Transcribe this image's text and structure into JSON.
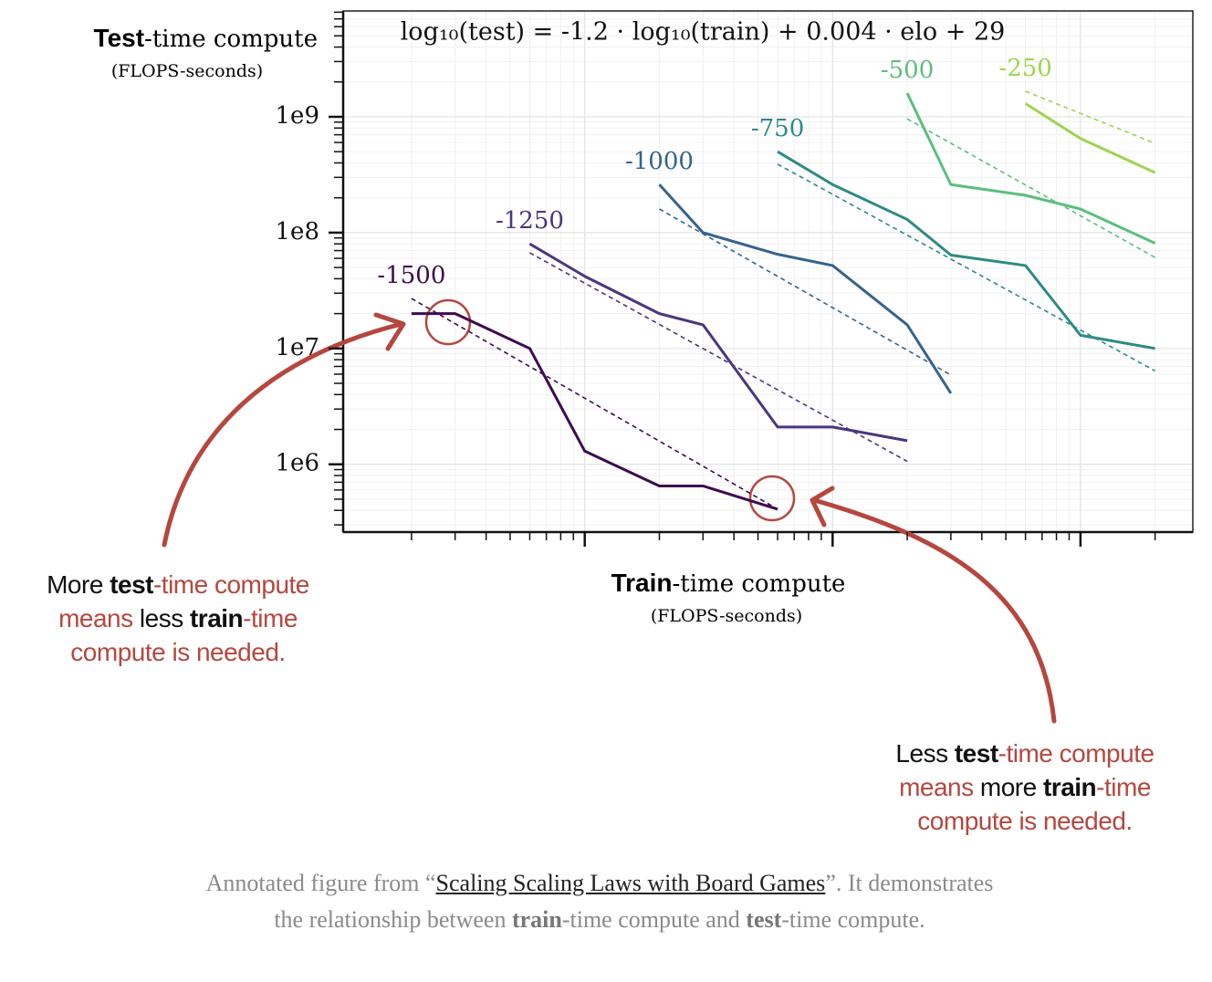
{
  "chart_data": {
    "type": "line",
    "equation": "log₁₀(test) = -1.2 · log₁₀(train) + 0.004 · elo + 29",
    "y_title": {
      "bold": "Test",
      "rest": "-time compute",
      "unit": "(FLOPS-seconds)"
    },
    "x_title": {
      "bold": "Train",
      "rest": "-time compute",
      "unit": "(FLOPS-seconds)"
    },
    "log_x": true,
    "log_y": true,
    "grid": true,
    "minor_grid": true,
    "xlim": [
      1060000000000.0,
      2840000000000000.0
    ],
    "xticks": [
      10000000000000.0,
      100000000000000.0,
      1000000000000000.0
    ],
    "ylim": [
      260000.0,
      8200000000.0
    ],
    "yticks": [
      {
        "value": 1000000.0,
        "label": "1e6"
      },
      {
        "value": 10000000.0,
        "label": "1e7"
      },
      {
        "value": 100000000.0,
        "label": "1e8"
      },
      {
        "value": 1000000000.0,
        "label": "1e9"
      }
    ],
    "series": [
      {
        "name": "-1500",
        "color": "#3d0b4f",
        "x": [
          2000000000000.0,
          3000000000000.0,
          6000000000000.0,
          10000000000000.0,
          20000000000000.0,
          30000000000000.0,
          60000000000000.0
        ],
        "values": [
          20000000.0,
          20000000.0,
          10000000.0,
          1300000.0,
          650000.0,
          650000.0,
          410000.0
        ],
        "fit": [
          27000000.0,
          410000.0
        ]
      },
      {
        "name": "-1250",
        "color": "#4a3680",
        "x": [
          6000000000000.0,
          10000000000000.0,
          20000000000000.0,
          30000000000000.0,
          60000000000000.0,
          100000000000000.0,
          200000000000000.0
        ],
        "values": [
          80000000.0,
          42000000.0,
          20000000.0,
          16000000.0,
          2100000.0,
          2100000.0,
          1600000.0
        ],
        "fit": [
          67000000.0,
          1060000.0
        ]
      },
      {
        "name": "-1000",
        "color": "#35638c",
        "x": [
          20000000000000.0,
          30000000000000.0,
          60000000000000.0,
          100000000000000.0,
          200000000000000.0,
          300000000000000.0
        ],
        "values": [
          260000000.0,
          100000000.0,
          65000000.0,
          52000000.0,
          16000000.0,
          4100000.0
        ],
        "fit": [
          160000000.0,
          5900000.0
        ]
      },
      {
        "name": "-750",
        "color": "#2d8a87",
        "x": [
          60000000000000.0,
          100000000000000.0,
          200000000000000.0,
          300000000000000.0,
          600000000000000.0,
          1000000000000000.0,
          2000000000000000.0
        ],
        "values": [
          500000000.0,
          260000000.0,
          130000000.0,
          64000000.0,
          52000000.0,
          13000000.0,
          10000000.0
        ],
        "fit": [
          390000000.0,
          6400000.0
        ]
      },
      {
        "name": "-500",
        "color": "#5bbf7c",
        "x": [
          200000000000000.0,
          300000000000000.0,
          600000000000000.0,
          1000000000000000.0,
          2000000000000000.0
        ],
        "values": [
          1600000000.0,
          260000000.0,
          210000000.0,
          160000000.0,
          81000000.0
        ],
        "fit": [
          960000000.0,
          61000000.0
        ]
      },
      {
        "name": "-250",
        "color": "#9fd44f",
        "x": [
          600000000000000.0,
          1000000000000000.0,
          2000000000000000.0
        ],
        "values": [
          1300000000.0,
          650000000.0,
          330000000.0
        ],
        "fit": [
          1660000000.0,
          590000000.0
        ]
      }
    ]
  },
  "annotations": [
    {
      "lines": [
        [
          {
            "text": "More ",
            "style": "dark"
          },
          {
            "text": "test",
            "style": "bold"
          },
          {
            "text": "-time compute",
            "style": "accent"
          }
        ],
        [
          {
            "text": "means",
            "style": "accent"
          },
          {
            "text": " less ",
            "style": "dark"
          },
          {
            "text": "train",
            "style": "bold"
          },
          {
            "text": "-time",
            "style": "accent"
          }
        ],
        [
          {
            "text": "compute is needed.",
            "style": "accent"
          }
        ]
      ]
    },
    {
      "lines": [
        [
          {
            "text": "Less ",
            "style": "dark"
          },
          {
            "text": "test",
            "style": "bold"
          },
          {
            "text": "-time compute",
            "style": "accent"
          }
        ],
        [
          {
            "text": "means",
            "style": "accent"
          },
          {
            "text": " more ",
            "style": "dark"
          },
          {
            "text": "train",
            "style": "bold"
          },
          {
            "text": "-time",
            "style": "accent"
          }
        ],
        [
          {
            "text": "compute is needed.",
            "style": "accent"
          }
        ]
      ]
    }
  ],
  "caption": [
    {
      "text": "Annotated figure from “",
      "style": "plain"
    },
    {
      "text": "Scaling Scaling Laws with Board Games",
      "style": "link"
    },
    {
      "text": "”. It demonstrates the relationship between ",
      "style": "plain"
    },
    {
      "text": "train",
      "style": "bold"
    },
    {
      "text": "-time compute and ",
      "style": "plain"
    },
    {
      "text": "test",
      "style": "bold"
    },
    {
      "text": "-time compute.",
      "style": "plain"
    }
  ]
}
